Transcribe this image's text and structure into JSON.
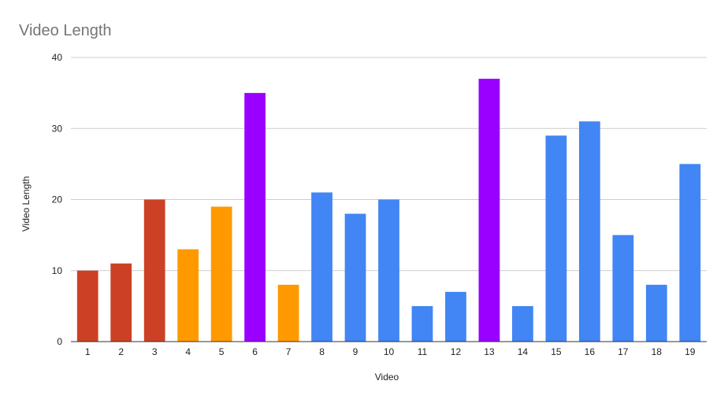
{
  "chart_data": {
    "type": "bar",
    "title": "Video Length",
    "xlabel": "Video",
    "ylabel": "Video Length",
    "ylim": [
      0,
      40
    ],
    "yticks": [
      "0",
      "10",
      "20",
      "30",
      "40"
    ],
    "grid": true,
    "legend": "none",
    "categories": [
      "1",
      "2",
      "3",
      "4",
      "5",
      "6",
      "7",
      "8",
      "9",
      "10",
      "11",
      "12",
      "13",
      "14",
      "15",
      "16",
      "17",
      "18",
      "19"
    ],
    "values": [
      10,
      11,
      20,
      13,
      19,
      35,
      8,
      21,
      18,
      20,
      5,
      7,
      37,
      5,
      29,
      31,
      15,
      8,
      25
    ],
    "bar_colors": [
      "#cc4125",
      "#cc4125",
      "#cc4125",
      "#ff9900",
      "#ff9900",
      "#9900ff",
      "#ff9900",
      "#4285f4",
      "#4285f4",
      "#4285f4",
      "#4285f4",
      "#4285f4",
      "#9900ff",
      "#4285f4",
      "#4285f4",
      "#4285f4",
      "#4285f4",
      "#4285f4",
      "#4285f4"
    ],
    "colors": {
      "red": "#cc4125",
      "orange": "#ff9900",
      "purple": "#9900ff",
      "blue": "#4285f4",
      "grid": "#cccccc",
      "axis": "#333333"
    }
  }
}
